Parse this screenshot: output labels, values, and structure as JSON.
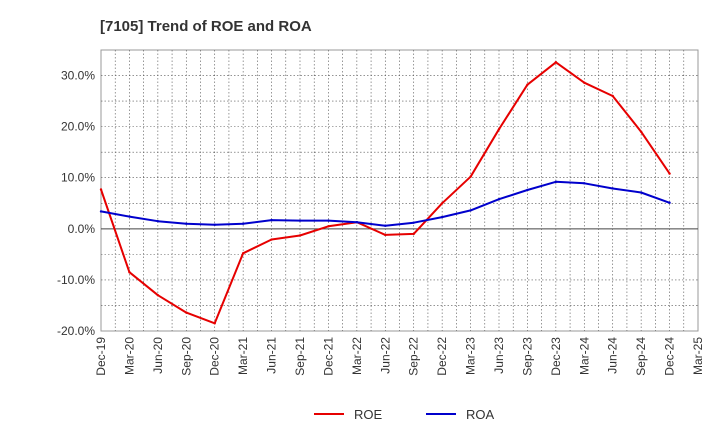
{
  "chart_data": {
    "type": "line",
    "title": "[7105]  Trend of ROE and ROA",
    "xlabel": "",
    "ylabel": "",
    "x": [
      "Dec-19",
      "Mar-20",
      "Jun-20",
      "Sep-20",
      "Dec-20",
      "Mar-21",
      "Jun-21",
      "Sep-21",
      "Dec-21",
      "Mar-22",
      "Jun-22",
      "Sep-22",
      "Dec-22",
      "Mar-23",
      "Jun-23",
      "Sep-23",
      "Dec-23",
      "Mar-24",
      "Jun-24",
      "Sep-24",
      "Dec-24",
      "Mar-25"
    ],
    "ylim": [
      -20,
      35
    ],
    "yticks": [
      30,
      20,
      10,
      0,
      -10,
      -20
    ],
    "ytick_labels": [
      "30.0%",
      "20.0%",
      "10.0%",
      "0.0%",
      "-10.0%",
      "-20.0%"
    ],
    "grid": true,
    "legend_position": "bottom-center",
    "series": [
      {
        "name": "ROE",
        "color": "#e60000",
        "values": [
          7.7,
          -8.5,
          -13.0,
          -16.4,
          -18.5,
          -4.8,
          -2.1,
          -1.3,
          0.5,
          1.3,
          -1.2,
          -1.0,
          5.0,
          10.2,
          19.5,
          28.2,
          32.6,
          28.6,
          26.0,
          19.0,
          10.8,
          null
        ]
      },
      {
        "name": "ROA",
        "color": "#0000cc",
        "values": [
          3.4,
          2.4,
          1.5,
          1.0,
          0.8,
          1.0,
          1.7,
          1.6,
          1.6,
          1.3,
          0.6,
          1.2,
          2.3,
          3.6,
          5.8,
          7.6,
          9.2,
          8.9,
          7.9,
          7.1,
          5.1,
          null
        ]
      }
    ]
  }
}
